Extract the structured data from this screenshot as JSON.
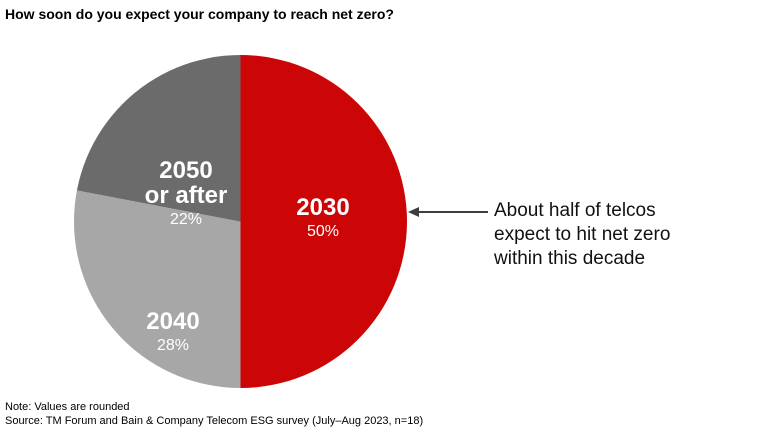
{
  "title": "How soon do you expect your company to reach net zero?",
  "chart_data": {
    "type": "pie",
    "title": "How soon do you expect your company to reach net zero?",
    "start_angle_deg": 0,
    "direction": "clockwise",
    "slices": [
      {
        "label": "2030",
        "value": 50,
        "value_label": "50%",
        "color": "#cc0606"
      },
      {
        "label": "2040",
        "value": 28,
        "value_label": "28%",
        "color": "#a7a7a7"
      },
      {
        "label": "2050 or after",
        "label_lines": [
          "2050",
          "or after"
        ],
        "value": 22,
        "value_label": "22%",
        "color": "#6b6b6b"
      }
    ]
  },
  "annotation": {
    "text": "About half of telcos expect to hit net zero within this decade",
    "lines": [
      "About half of telcos",
      "expect to hit net zero",
      "within this decade"
    ]
  },
  "footer": {
    "note": "Note: Values are rounded",
    "source": "Source: TM Forum and Bain & Company Telecom ESG survey (July–Aug 2023, n=18)"
  }
}
